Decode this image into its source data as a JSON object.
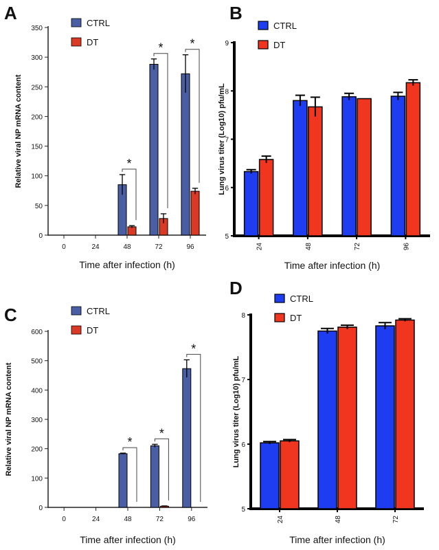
{
  "colors": {
    "A": {
      "ctrl": "#4a5fa3",
      "dt": "#d93a25"
    },
    "B": {
      "ctrl": "#1f3df0",
      "dt": "#f0361e"
    },
    "C": {
      "ctrl": "#4a5fa3",
      "dt": "#d93a25"
    },
    "D": {
      "ctrl": "#1f3df0",
      "dt": "#f0361e"
    }
  },
  "chart_data": [
    {
      "panel": "A",
      "type": "bar",
      "xlabel": "Time after infection (h)",
      "ylabel": "Relative viral NP mRNA content",
      "categories": [
        "0",
        "24",
        "48",
        "72",
        "96"
      ],
      "ylim": [
        0,
        350
      ],
      "yticks": [
        "0",
        "50",
        "100",
        "150",
        "200",
        "250",
        "300",
        "350"
      ],
      "legend": [
        "CTRL",
        "DT"
      ],
      "series": [
        {
          "name": "CTRL",
          "values": [
            0,
            0,
            85,
            288,
            272
          ],
          "errors": [
            0,
            0,
            17,
            9,
            32
          ]
        },
        {
          "name": "DT",
          "values": [
            0,
            0,
            14,
            28,
            74
          ],
          "errors": [
            0,
            0,
            2,
            8,
            5
          ]
        }
      ],
      "annotations": [
        "*",
        "*",
        "*"
      ]
    },
    {
      "panel": "B",
      "type": "bar",
      "xlabel": "Time after infection (h)",
      "ylabel": "Lung virus titer (Log10) pfu/mL",
      "categories": [
        "24",
        "48",
        "72",
        "96"
      ],
      "ylim": [
        5,
        9
      ],
      "yticks": [
        "5",
        "6",
        "7",
        "8",
        "9"
      ],
      "legend": [
        "CTRL",
        "DT"
      ],
      "series": [
        {
          "name": "CTRL",
          "values": [
            6.33,
            7.8,
            7.88,
            7.89
          ],
          "errors": [
            0.04,
            0.11,
            0.07,
            0.08
          ]
        },
        {
          "name": "DT",
          "values": [
            6.58,
            7.67,
            7.84,
            8.17
          ],
          "errors": [
            0.07,
            0.2,
            0,
            0.06
          ]
        }
      ]
    },
    {
      "panel": "C",
      "type": "bar",
      "xlabel": "Time after infection (h)",
      "ylabel": "Relative viral NP mRNA content",
      "categories": [
        "0",
        "24",
        "48",
        "72",
        "96"
      ],
      "ylim": [
        0,
        600
      ],
      "yticks": [
        "0",
        "100",
        "200",
        "300",
        "400",
        "500",
        "600"
      ],
      "legend": [
        "CTRL",
        "DT"
      ],
      "series": [
        {
          "name": "CTRL",
          "values": [
            0,
            0,
            183,
            210,
            473
          ],
          "errors": [
            0,
            0,
            2,
            5,
            30
          ]
        },
        {
          "name": "DT",
          "values": [
            0,
            0,
            0,
            4,
            0
          ],
          "errors": [
            0,
            0,
            0,
            1,
            0
          ]
        }
      ],
      "annotations": [
        "*",
        "*",
        "*"
      ]
    },
    {
      "panel": "D",
      "type": "bar",
      "xlabel": "Time after infection (h)",
      "ylabel": "Lung virus titer (Log10) pfu/mL",
      "categories": [
        "24",
        "48",
        "72"
      ],
      "ylim": [
        5,
        8
      ],
      "yticks": [
        "5",
        "6",
        "7",
        "8"
      ],
      "legend": [
        "CTRL",
        "DT"
      ],
      "series": [
        {
          "name": "CTRL",
          "values": [
            6.02,
            7.75,
            7.83
          ],
          "errors": [
            0.02,
            0.04,
            0.05
          ]
        },
        {
          "name": "DT",
          "values": [
            6.05,
            7.81,
            7.92
          ],
          "errors": [
            0.02,
            0.03,
            0.02
          ]
        }
      ]
    }
  ]
}
